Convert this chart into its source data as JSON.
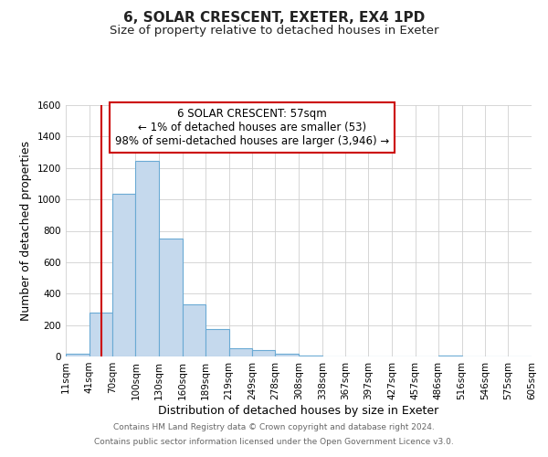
{
  "title": "6, SOLAR CRESCENT, EXETER, EX4 1PD",
  "subtitle": "Size of property relative to detached houses in Exeter",
  "xlabel": "Distribution of detached houses by size in Exeter",
  "ylabel": "Number of detached properties",
  "bin_edges": [
    11,
    41,
    70,
    100,
    130,
    160,
    189,
    219,
    249,
    278,
    308,
    338,
    367,
    397,
    427,
    457,
    486,
    516,
    546,
    575,
    605
  ],
  "bar_heights": [
    15,
    280,
    1035,
    1248,
    750,
    330,
    175,
    55,
    40,
    20,
    5,
    0,
    0,
    0,
    0,
    0,
    5,
    0,
    0,
    0
  ],
  "bar_color": "#c5d9ed",
  "bar_edge_color": "#6aaad4",
  "vline_x": 57,
  "vline_color": "#cc0000",
  "ylim": [
    0,
    1600
  ],
  "yticks": [
    0,
    200,
    400,
    600,
    800,
    1000,
    1200,
    1400,
    1600
  ],
  "annotation_title": "6 SOLAR CRESCENT: 57sqm",
  "annotation_line1": "← 1% of detached houses are smaller (53)",
  "annotation_line2": "98% of semi-detached houses are larger (3,946) →",
  "annotation_box_color": "#ffffff",
  "annotation_border_color": "#cc0000",
  "footer1": "Contains HM Land Registry data © Crown copyright and database right 2024.",
  "footer2": "Contains public sector information licensed under the Open Government Licence v3.0.",
  "background_color": "#ffffff",
  "grid_color": "#d0d0d0",
  "title_fontsize": 11,
  "subtitle_fontsize": 9.5,
  "axis_label_fontsize": 9,
  "tick_label_fontsize": 7.5,
  "annotation_fontsize": 8.5,
  "footer_fontsize": 6.5
}
